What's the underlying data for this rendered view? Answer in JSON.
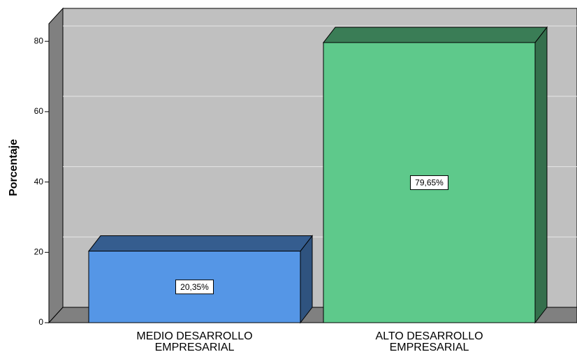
{
  "chart_data": {
    "type": "bar3d",
    "y_label": "Porcentaje",
    "categories": [
      "MEDIO DESARROLLO\nEMPRESARIAL",
      "ALTO DESARROLLO\nEMPRESARIAL"
    ],
    "values": [
      20.35,
      79.65
    ],
    "value_labels": [
      "20,35%",
      "79,65%"
    ],
    "colors": [
      "#5596e6",
      "#5ec98b"
    ],
    "ylim": [
      0,
      85
    ],
    "yticks": [
      0,
      20,
      40,
      60,
      80
    ],
    "grid": true
  }
}
